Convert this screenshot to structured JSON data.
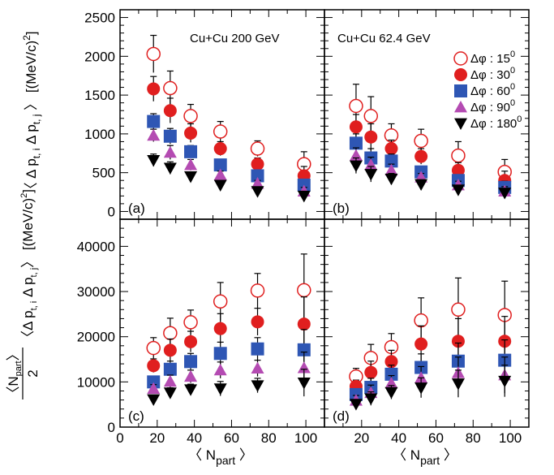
{
  "legend": {
    "entries": [
      {
        "delta": "15",
        "marker": "open-circle",
        "color": "#e01f1f"
      },
      {
        "delta": "30",
        "marker": "filled-circle",
        "color": "#e01f1f"
      },
      {
        "delta": "60",
        "marker": "square",
        "color": "#2e56b4"
      },
      {
        "delta": "90",
        "marker": "triangle-up",
        "color": "#b44bb2"
      },
      {
        "delta": "180",
        "marker": "triangle-down",
        "color": "#000000"
      }
    ],
    "prefix": "Δφ : ",
    "sup": "0"
  },
  "axes": {
    "x_title_main": "〈 N",
    "x_title_sub": "part",
    "x_title_end": " 〉",
    "y_top_title": "〈 Δ p",
    "y_top_sub1": "t, i",
    "y_top_mid": " Δ p",
    "y_top_sub2": "t, j",
    "y_top_end": " 〉 [(MeV/c)",
    "y_top_sup": "2",
    "y_top_close": "]",
    "y_bottom_frac_num": "〈N",
    "y_bottom_frac_num_sub": "part",
    "y_bottom_frac_num_end": "〉",
    "y_bottom_frac_den": "2",
    "y_bottom_rest": "〈Δ p",
    "y_bottom_sub1": "t, i",
    "y_bottom_mid": " Δ p",
    "y_bottom_sub2": "t, j",
    "y_bottom_end": "〉 [(MeV/c)",
    "y_bottom_sup": "2",
    "y_bottom_close": "]"
  },
  "chart_data": [
    {
      "panel": "a",
      "type": "scatter",
      "label": "(a)",
      "title": "Cu+Cu 200 GeV",
      "xlim": [
        0,
        110
      ],
      "ylim": [
        -100,
        2600
      ],
      "yticks": [
        0,
        500,
        1000,
        1500,
        2000,
        2500
      ],
      "xticks": [
        0,
        20,
        40,
        60,
        80,
        100
      ],
      "x": [
        18,
        27,
        38,
        54,
        74,
        99
      ],
      "series": [
        {
          "delta": "15",
          "values": [
            2030,
            1590,
            1230,
            1030,
            810,
            610
          ],
          "errors": [
            240,
            220,
            150,
            130,
            100,
            160
          ]
        },
        {
          "delta": "30",
          "values": [
            1580,
            1300,
            1010,
            810,
            610,
            460
          ],
          "errors": [
            160,
            160,
            120,
            90,
            80,
            120
          ]
        },
        {
          "delta": "60",
          "values": [
            1160,
            970,
            770,
            600,
            460,
            340
          ],
          "errors": [
            100,
            100,
            80,
            60,
            50,
            70
          ]
        },
        {
          "delta": "90",
          "values": [
            980,
            760,
            600,
            470,
            360,
            260
          ],
          "errors": [
            80,
            90,
            70,
            50,
            40,
            50
          ]
        },
        {
          "delta": "180",
          "values": [
            660,
            560,
            450,
            340,
            260,
            200
          ],
          "errors": [
            80,
            80,
            60,
            40,
            30,
            30
          ]
        }
      ]
    },
    {
      "panel": "b",
      "type": "scatter",
      "label": "(b)",
      "title": "Cu+Cu 62.4 GeV",
      "xlim": [
        0,
        110
      ],
      "ylim": [
        -100,
        2600
      ],
      "xticks": [
        0,
        20,
        40,
        60,
        80,
        100
      ],
      "x": [
        17,
        25,
        36,
        52,
        72,
        97
      ],
      "series": [
        {
          "delta": "15",
          "values": [
            1360,
            1230,
            980,
            910,
            720,
            510
          ],
          "errors": [
            280,
            250,
            150,
            150,
            180,
            160
          ]
        },
        {
          "delta": "30",
          "values": [
            1090,
            960,
            810,
            710,
            530,
            400
          ],
          "errors": [
            160,
            170,
            110,
            100,
            100,
            120
          ]
        },
        {
          "delta": "60",
          "values": [
            880,
            690,
            650,
            510,
            400,
            310
          ],
          "errors": [
            120,
            120,
            90,
            60,
            70,
            80
          ]
        },
        {
          "delta": "90",
          "values": [
            720,
            600,
            530,
            440,
            340,
            260
          ],
          "errors": [
            100,
            100,
            80,
            50,
            50,
            60
          ]
        },
        {
          "delta": "180",
          "values": [
            590,
            480,
            420,
            350,
            280,
            240
          ],
          "errors": [
            100,
            100,
            70,
            50,
            50,
            50
          ]
        }
      ]
    },
    {
      "panel": "c",
      "type": "scatter",
      "label": "(c)",
      "xlim": [
        0,
        110
      ],
      "ylim": [
        0,
        46000
      ],
      "yticks": [
        0,
        10000,
        20000,
        30000,
        40000
      ],
      "xticks": [
        0,
        20,
        40,
        60,
        80,
        100
      ],
      "x": [
        18,
        27,
        38,
        54,
        74,
        99
      ],
      "series": [
        {
          "delta": "15",
          "values": [
            17500,
            20800,
            23200,
            27800,
            30200,
            30300
          ],
          "errors": [
            2300,
            3300,
            2700,
            4200,
            3800,
            8000
          ]
        },
        {
          "delta": "30",
          "values": [
            13600,
            17000,
            18900,
            21800,
            23300,
            22800
          ],
          "errors": [
            1500,
            2500,
            2300,
            3300,
            3000,
            6000
          ]
        },
        {
          "delta": "60",
          "values": [
            10000,
            12800,
            14500,
            16300,
            17300,
            17100
          ],
          "errors": [
            1000,
            1800,
            1800,
            2500,
            2500,
            4500
          ]
        },
        {
          "delta": "90",
          "values": [
            8500,
            10100,
            11200,
            12600,
            13000,
            13100
          ],
          "errors": [
            900,
            1400,
            1400,
            1800,
            1800,
            3500
          ]
        },
        {
          "delta": "180",
          "values": [
            6100,
            7600,
            8300,
            8500,
            9200,
            9800
          ],
          "errors": [
            800,
            1100,
            1200,
            1600,
            1600,
            3000
          ]
        }
      ]
    },
    {
      "panel": "d",
      "type": "scatter",
      "label": "(d)",
      "xlim": [
        0,
        110
      ],
      "ylim": [
        0,
        46000
      ],
      "xticks": [
        0,
        20,
        40,
        60,
        80,
        100
      ],
      "x": [
        17,
        25,
        36,
        52,
        72,
        97
      ],
      "series": [
        {
          "delta": "15",
          "values": [
            11200,
            15300,
            17700,
            23600,
            26000,
            24800
          ],
          "errors": [
            1800,
            3000,
            3000,
            5000,
            7000,
            7500
          ]
        },
        {
          "delta": "30",
          "values": [
            9000,
            12100,
            14500,
            18400,
            19000,
            19000
          ],
          "errors": [
            1400,
            2500,
            2500,
            4000,
            5000,
            5500
          ]
        },
        {
          "delta": "60",
          "values": [
            7200,
            8800,
            11700,
            13200,
            14600,
            14800
          ],
          "errors": [
            1300,
            2000,
            2000,
            3000,
            4000,
            4500
          ]
        },
        {
          "delta": "90",
          "values": [
            5900,
            7600,
            9700,
            10900,
            12000,
            11500
          ],
          "errors": [
            1100,
            1700,
            1700,
            2500,
            3500,
            4000
          ]
        },
        {
          "delta": "180",
          "values": [
            5100,
            6300,
            7700,
            8700,
            9600,
            10200
          ],
          "errors": [
            1000,
            1500,
            1500,
            2200,
            3000,
            3500
          ]
        }
      ]
    }
  ]
}
